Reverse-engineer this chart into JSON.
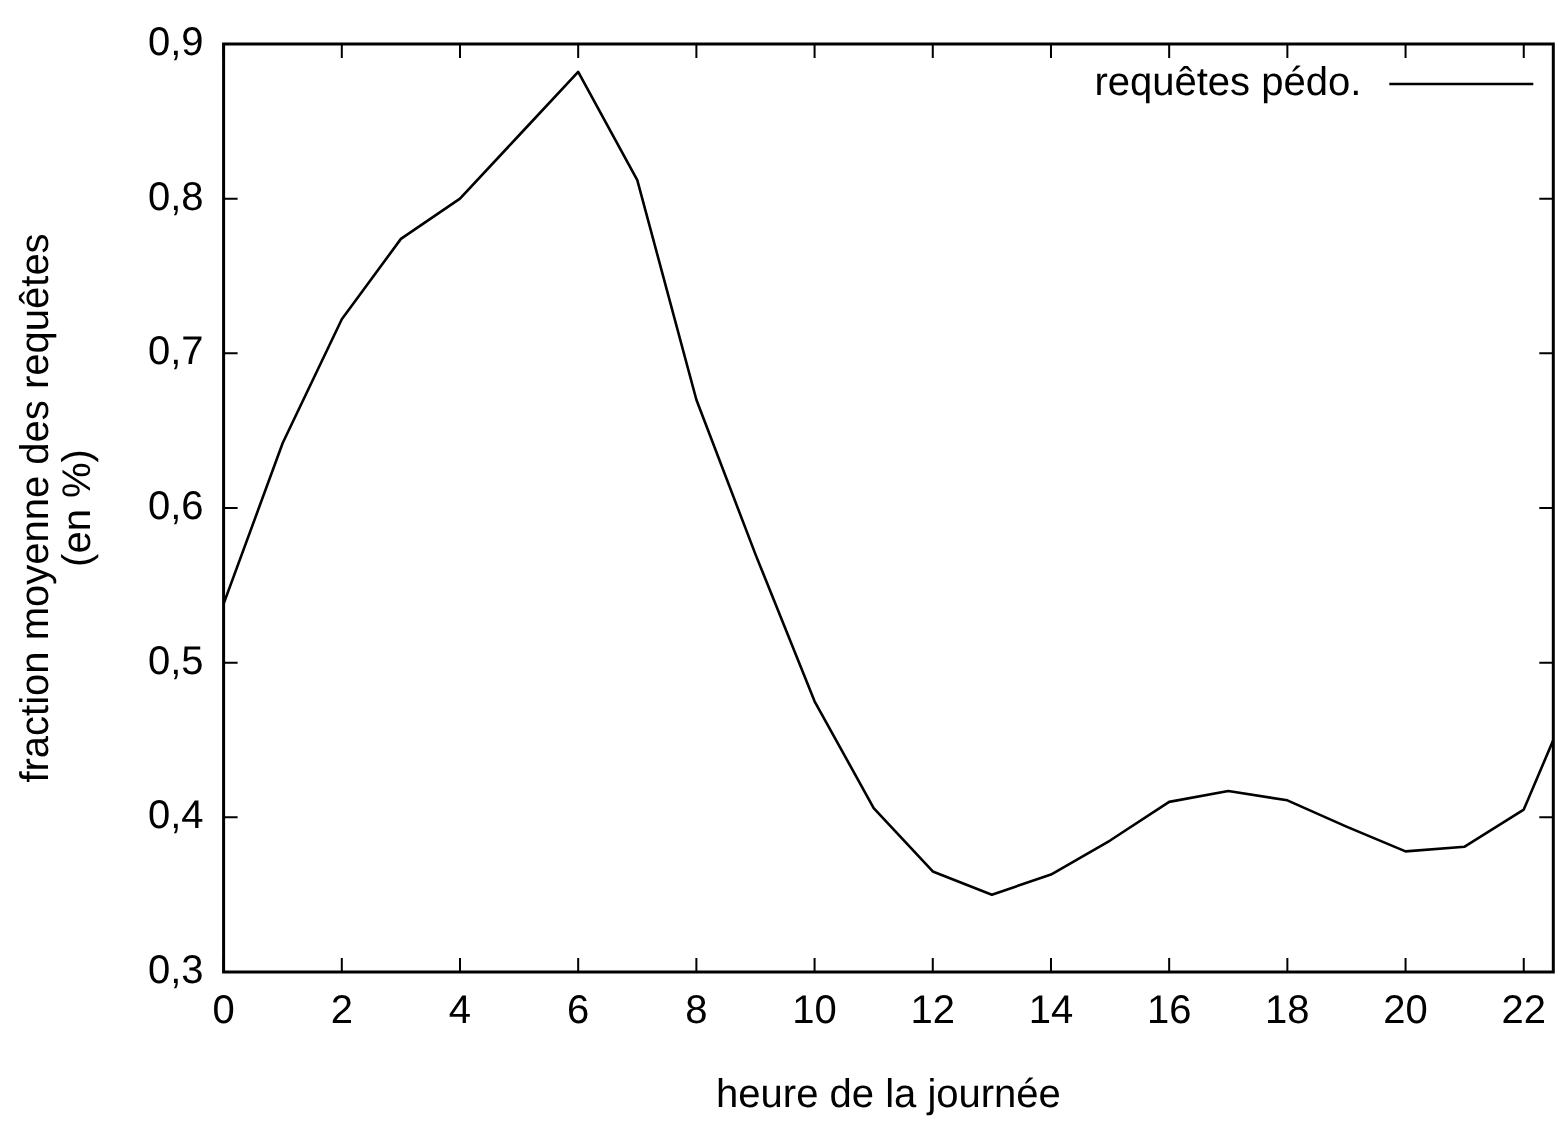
{
  "chart_data": {
    "type": "line",
    "xlabel": "heure de la journée",
    "ylabel": "fraction moyenne des requêtes\n(en %)",
    "x": [
      0,
      1,
      2,
      3,
      4,
      5,
      6,
      7,
      8,
      9,
      10,
      11,
      12,
      13,
      14,
      15,
      16,
      17,
      18,
      19,
      20,
      21,
      22,
      22.5
    ],
    "series": [
      {
        "name": "requêtes pédo.",
        "color": "#000000",
        "values": [
          0.538,
          0.642,
          0.722,
          0.774,
          0.8,
          0.841,
          0.882,
          0.812,
          0.67,
          0.57,
          0.475,
          0.406,
          0.365,
          0.35,
          0.363,
          0.385,
          0.41,
          0.417,
          0.411,
          0.394,
          0.378,
          0.381,
          0.405,
          0.45
        ]
      }
    ],
    "xlim": [
      0,
      22.5
    ],
    "xticks": [
      0,
      2,
      4,
      6,
      8,
      10,
      12,
      14,
      16,
      18,
      20,
      22
    ],
    "ylim": [
      0.3,
      0.9
    ],
    "yticks": [
      {
        "value": 0.3,
        "label": "0,3"
      },
      {
        "value": 0.4,
        "label": "0,4"
      },
      {
        "value": 0.5,
        "label": "0,5"
      },
      {
        "value": 0.6,
        "label": "0,6"
      },
      {
        "value": 0.7,
        "label": "0,7"
      },
      {
        "value": 0.8,
        "label": "0,8"
      },
      {
        "value": 0.9,
        "label": "0,9"
      }
    ],
    "legend": "top right",
    "marker": "none",
    "line_style": "solid"
  }
}
